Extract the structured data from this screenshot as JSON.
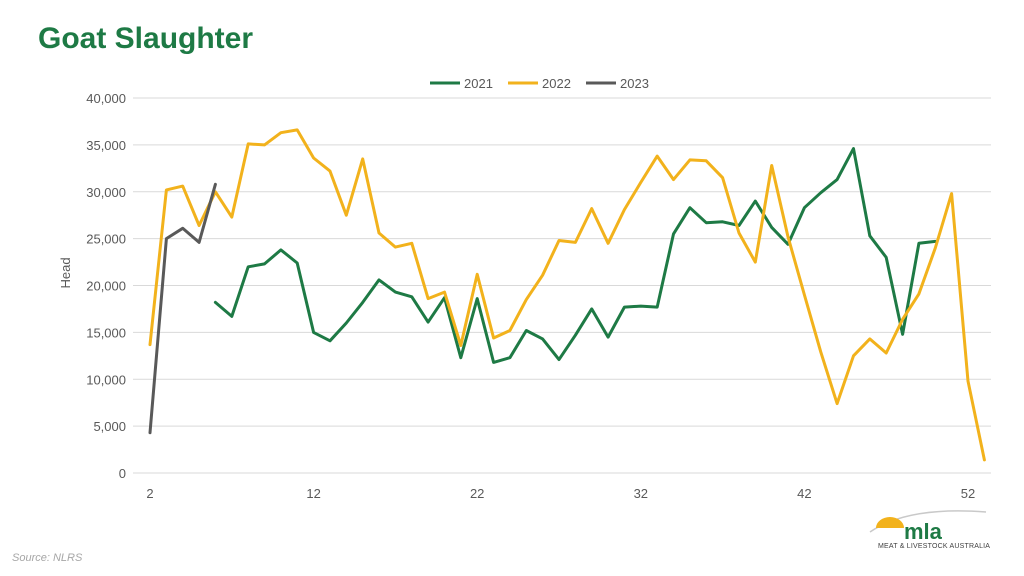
{
  "page_title": "Goat Slaughter",
  "source": "Source: NLRS",
  "logo": {
    "name": "mla",
    "tagline": "MEAT & LIVESTOCK AUSTRALIA"
  },
  "colors": {
    "title": "#1e7a45",
    "2021": "#1e7a45",
    "2022": "#f2b21c",
    "2023": "#595959",
    "grid": "#d9d9d9",
    "axis_text": "#595959"
  },
  "chart_data": {
    "type": "line",
    "ylabel": "Head",
    "xlabel": "",
    "xlim": [
      2,
      53
    ],
    "ylim": [
      0,
      40000
    ],
    "x_ticks": [
      2,
      12,
      22,
      32,
      42,
      52
    ],
    "y_ticks": [
      0,
      5000,
      10000,
      15000,
      20000,
      25000,
      30000,
      35000,
      40000
    ],
    "y_tick_labels": [
      "0",
      "5,000",
      "10,000",
      "15,000",
      "20,000",
      "25,000",
      "30,000",
      "35,000",
      "40,000"
    ],
    "legend_position": "top-center",
    "grid": true,
    "series": [
      {
        "name": "2021",
        "x": [
          6,
          7,
          8,
          9,
          10,
          11,
          12,
          13,
          14,
          15,
          16,
          17,
          18,
          19,
          20,
          21,
          22,
          23,
          24,
          25,
          26,
          27,
          28,
          29,
          30,
          31,
          32,
          33,
          34,
          35,
          36,
          37,
          38,
          39,
          40,
          41,
          42,
          43,
          44,
          45,
          46,
          47,
          48,
          49,
          50
        ],
        "values": [
          18200,
          16700,
          22000,
          22300,
          23800,
          22400,
          15000,
          14100,
          16000,
          18200,
          20600,
          19300,
          18800,
          16100,
          18700,
          12300,
          18600,
          11800,
          12300,
          15200,
          14300,
          12100,
          14700,
          17500,
          14500,
          17700,
          17800,
          17700,
          25500,
          28300,
          26700,
          26800,
          26400,
          29000,
          26200,
          24400,
          28300,
          29900,
          31300,
          34600,
          25300,
          23000,
          14800,
          24500,
          24700
        ]
      },
      {
        "name": "2022",
        "x": [
          2,
          3,
          4,
          5,
          6,
          7,
          8,
          9,
          10,
          11,
          12,
          13,
          14,
          15,
          16,
          17,
          18,
          19,
          20,
          21,
          22,
          23,
          24,
          25,
          26,
          27,
          28,
          29,
          30,
          31,
          32,
          33,
          34,
          35,
          36,
          37,
          38,
          39,
          40,
          41,
          42,
          43,
          44,
          45,
          46,
          47,
          48,
          49,
          50,
          51,
          52,
          53
        ],
        "values": [
          13700,
          30200,
          30600,
          26400,
          30000,
          27300,
          35100,
          35000,
          36300,
          36600,
          33600,
          32200,
          27500,
          33500,
          25600,
          24100,
          24500,
          18600,
          19300,
          13600,
          21200,
          14400,
          15200,
          18500,
          21100,
          24800,
          24600,
          28200,
          24500,
          28100,
          31000,
          33800,
          31300,
          33400,
          33300,
          31500,
          25600,
          22500,
          32800,
          25200,
          19000,
          12900,
          7400,
          12500,
          14300,
          12800,
          16400,
          19100,
          24000,
          29800,
          9800,
          1400
        ]
      },
      {
        "name": "2023",
        "x": [
          2,
          3,
          4,
          5,
          6
        ],
        "values": [
          4300,
          25000,
          26100,
          24600,
          30800
        ]
      }
    ]
  }
}
